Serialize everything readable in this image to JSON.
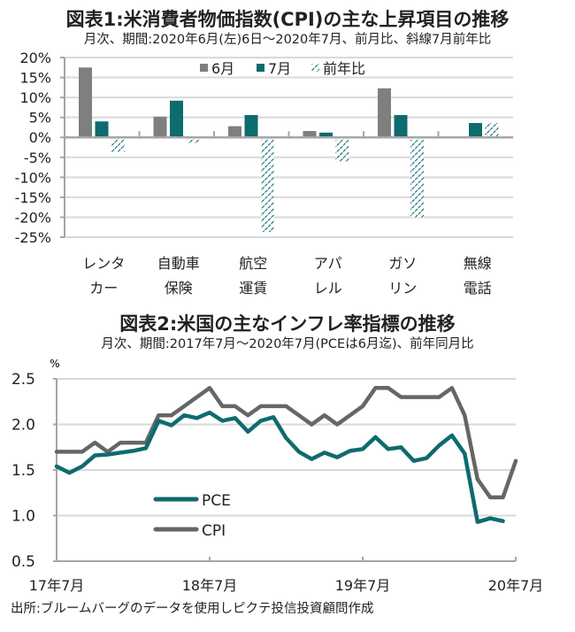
{
  "figure1": {
    "title": "図表1:米消費者物価指数(CPI)の主な上昇項目の推移",
    "subtitle": "月次、期間:2020年6月(左)6日～2020年7月、前月比、斜線7月前年比"
  },
  "figure2": {
    "title": "図表2:米国の主なインフレ率指標の推移",
    "subtitle": "月次、期間:2017年7月～2020年7月(PCEは6月迄)、前年同月比",
    "unit": "%"
  },
  "source": "出所:ブルームバーグのデータを使用しピクテ投信投資顧問作成",
  "colors": {
    "gray_bar": "#7f7f7f",
    "teal": "#0e6b6e",
    "cpi_line": "#666666",
    "grid": "#d9d9d9",
    "axis": "#a6a6a6"
  },
  "chart_data": [
    {
      "type": "bar",
      "title": "図表1:米消費者物価指数(CPI)の主な上昇項目の推移",
      "categories": [
        [
          "レンタ",
          "カー"
        ],
        [
          "自動車",
          "保険"
        ],
        [
          "航空",
          "運賃"
        ],
        [
          "アパ",
          "レル"
        ],
        [
          "ガソ",
          "リン"
        ],
        [
          "無線",
          "電話"
        ]
      ],
      "series": [
        {
          "name": "6月",
          "style": "solid-gray",
          "values": [
            17.5,
            5.2,
            2.8,
            1.6,
            12.3,
            0.0
          ]
        },
        {
          "name": "7月",
          "style": "solid-teal",
          "values": [
            4.0,
            9.2,
            5.6,
            1.2,
            5.6,
            3.6
          ]
        },
        {
          "name": "前年比",
          "style": "hatched-teal",
          "values": [
            -3.7,
            -1.5,
            -23.7,
            -6.1,
            -20.0,
            3.6
          ]
        }
      ],
      "yticks": [
        "20%",
        "15%",
        "10%",
        "5%",
        "0%",
        "-5%",
        "-10%",
        "-15%",
        "-20%",
        "-25%"
      ],
      "ylim": [
        -25,
        20
      ],
      "ystep": 5,
      "grid": true,
      "legend": "top-center",
      "xlabel": "",
      "ylabel": ""
    },
    {
      "type": "line",
      "title": "図表2:米国の主なインフレ率指標の推移",
      "x_start": "2017-07",
      "x_months": 37,
      "xticks": [
        {
          "label": "17年7月",
          "index": 0
        },
        {
          "label": "18年7月",
          "index": 12
        },
        {
          "label": "19年7月",
          "index": 24
        },
        {
          "label": "20年7月",
          "index": 36
        }
      ],
      "ylim": [
        0.5,
        2.5
      ],
      "ystep": 0.5,
      "yticks": [
        "2.5",
        "2.0",
        "1.5",
        "1.0",
        "0.5"
      ],
      "ylabel": "%",
      "grid": true,
      "legend": "center-left",
      "series": [
        {
          "name": "PCE",
          "color_key": "teal",
          "values": [
            1.54,
            1.47,
            1.54,
            1.66,
            1.67,
            1.69,
            1.71,
            1.74,
            2.04,
            1.99,
            2.1,
            2.07,
            2.13,
            2.04,
            2.07,
            1.92,
            2.04,
            2.08,
            1.85,
            1.7,
            1.62,
            1.69,
            1.64,
            1.71,
            1.73,
            1.86,
            1.73,
            1.75,
            1.6,
            1.63,
            1.77,
            1.88,
            1.68,
            0.93,
            0.97,
            0.94
          ]
        },
        {
          "name": "CPI",
          "color_key": "cpi_line",
          "values": [
            1.7,
            1.7,
            1.7,
            1.8,
            1.7,
            1.8,
            1.8,
            1.8,
            2.1,
            2.1,
            2.2,
            2.3,
            2.4,
            2.2,
            2.2,
            2.1,
            2.2,
            2.2,
            2.2,
            2.1,
            2.0,
            2.1,
            2.0,
            2.1,
            2.2,
            2.4,
            2.4,
            2.3,
            2.3,
            2.3,
            2.3,
            2.4,
            2.1,
            1.4,
            1.2,
            1.2,
            1.6
          ]
        }
      ]
    }
  ]
}
